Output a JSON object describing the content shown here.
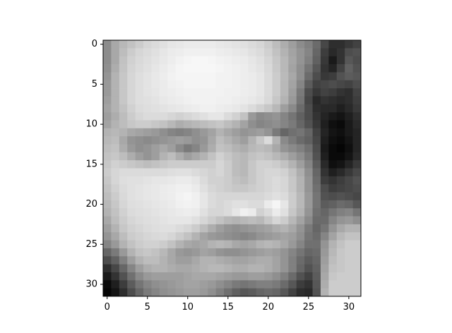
{
  "chart_data": {
    "type": "heatmap",
    "colormap": "gray",
    "grid": false,
    "xlim": [
      -0.5,
      31.5
    ],
    "ylim": [
      31.5,
      -0.5
    ],
    "x_ticks": [
      0,
      5,
      10,
      15,
      20,
      25,
      30
    ],
    "y_ticks": [
      0,
      5,
      10,
      15,
      20,
      25,
      30
    ],
    "x_tick_labels": [
      "0",
      "5",
      "10",
      "15",
      "20",
      "25",
      "30"
    ],
    "y_tick_labels": [
      "0",
      "5",
      "10",
      "15",
      "20",
      "25",
      "30"
    ],
    "shape": [
      32,
      32
    ],
    "values": [
      [
        0.55,
        0.66,
        0.72,
        0.76,
        0.8,
        0.84,
        0.86,
        0.88,
        0.9,
        0.91,
        0.92,
        0.92,
        0.92,
        0.92,
        0.91,
        0.9,
        0.89,
        0.88,
        0.86,
        0.84,
        0.8,
        0.74,
        0.68,
        0.62,
        0.55,
        0.5,
        0.42,
        0.28,
        0.18,
        0.18,
        0.22,
        0.26
      ],
      [
        0.55,
        0.66,
        0.74,
        0.8,
        0.84,
        0.86,
        0.88,
        0.9,
        0.92,
        0.93,
        0.94,
        0.94,
        0.94,
        0.94,
        0.93,
        0.92,
        0.91,
        0.9,
        0.88,
        0.86,
        0.82,
        0.76,
        0.7,
        0.64,
        0.58,
        0.52,
        0.4,
        0.24,
        0.16,
        0.2,
        0.3,
        0.32
      ],
      [
        0.55,
        0.66,
        0.76,
        0.82,
        0.85,
        0.87,
        0.89,
        0.91,
        0.93,
        0.95,
        0.96,
        0.97,
        0.97,
        0.96,
        0.95,
        0.94,
        0.93,
        0.92,
        0.9,
        0.88,
        0.84,
        0.78,
        0.72,
        0.65,
        0.58,
        0.5,
        0.38,
        0.22,
        0.1,
        0.2,
        0.34,
        0.3
      ],
      [
        0.56,
        0.68,
        0.77,
        0.83,
        0.86,
        0.88,
        0.9,
        0.92,
        0.94,
        0.96,
        0.97,
        0.97,
        0.97,
        0.97,
        0.96,
        0.95,
        0.94,
        0.93,
        0.91,
        0.89,
        0.85,
        0.79,
        0.72,
        0.64,
        0.56,
        0.46,
        0.34,
        0.2,
        0.14,
        0.26,
        0.38,
        0.32
      ],
      [
        0.58,
        0.7,
        0.78,
        0.84,
        0.87,
        0.89,
        0.91,
        0.93,
        0.95,
        0.96,
        0.96,
        0.96,
        0.96,
        0.96,
        0.95,
        0.95,
        0.94,
        0.93,
        0.92,
        0.9,
        0.86,
        0.8,
        0.73,
        0.66,
        0.56,
        0.42,
        0.3,
        0.22,
        0.24,
        0.32,
        0.36,
        0.34
      ],
      [
        0.6,
        0.7,
        0.78,
        0.84,
        0.87,
        0.89,
        0.91,
        0.92,
        0.94,
        0.95,
        0.96,
        0.96,
        0.96,
        0.96,
        0.95,
        0.95,
        0.94,
        0.93,
        0.92,
        0.9,
        0.86,
        0.8,
        0.72,
        0.64,
        0.52,
        0.36,
        0.26,
        0.28,
        0.3,
        0.28,
        0.26,
        0.3
      ],
      [
        0.6,
        0.7,
        0.78,
        0.84,
        0.87,
        0.89,
        0.9,
        0.92,
        0.93,
        0.94,
        0.95,
        0.95,
        0.95,
        0.95,
        0.95,
        0.94,
        0.94,
        0.93,
        0.92,
        0.9,
        0.86,
        0.8,
        0.72,
        0.62,
        0.48,
        0.3,
        0.22,
        0.26,
        0.24,
        0.2,
        0.18,
        0.26
      ],
      [
        0.62,
        0.7,
        0.78,
        0.84,
        0.87,
        0.88,
        0.89,
        0.91,
        0.92,
        0.93,
        0.94,
        0.95,
        0.95,
        0.95,
        0.94,
        0.94,
        0.93,
        0.92,
        0.91,
        0.89,
        0.85,
        0.78,
        0.7,
        0.6,
        0.46,
        0.28,
        0.16,
        0.2,
        0.18,
        0.16,
        0.18,
        0.24
      ],
      [
        0.64,
        0.7,
        0.76,
        0.82,
        0.86,
        0.87,
        0.88,
        0.89,
        0.9,
        0.91,
        0.92,
        0.93,
        0.94,
        0.94,
        0.93,
        0.92,
        0.91,
        0.89,
        0.86,
        0.82,
        0.78,
        0.72,
        0.62,
        0.54,
        0.42,
        0.3,
        0.18,
        0.16,
        0.16,
        0.12,
        0.16,
        0.22
      ],
      [
        0.62,
        0.68,
        0.74,
        0.8,
        0.84,
        0.86,
        0.86,
        0.86,
        0.84,
        0.82,
        0.84,
        0.86,
        0.88,
        0.9,
        0.9,
        0.86,
        0.82,
        0.76,
        0.6,
        0.54,
        0.56,
        0.58,
        0.52,
        0.46,
        0.38,
        0.3,
        0.2,
        0.14,
        0.1,
        0.08,
        0.12,
        0.18
      ],
      [
        0.64,
        0.7,
        0.74,
        0.78,
        0.8,
        0.8,
        0.78,
        0.76,
        0.72,
        0.68,
        0.7,
        0.72,
        0.74,
        0.76,
        0.78,
        0.74,
        0.7,
        0.64,
        0.56,
        0.52,
        0.54,
        0.56,
        0.52,
        0.48,
        0.4,
        0.32,
        0.22,
        0.12,
        0.06,
        0.04,
        0.1,
        0.16
      ],
      [
        0.7,
        0.72,
        0.7,
        0.66,
        0.64,
        0.62,
        0.6,
        0.56,
        0.52,
        0.5,
        0.52,
        0.56,
        0.6,
        0.64,
        0.7,
        0.66,
        0.62,
        0.58,
        0.6,
        0.62,
        0.58,
        0.48,
        0.4,
        0.44,
        0.46,
        0.4,
        0.26,
        0.14,
        0.08,
        0.06,
        0.1,
        0.14
      ],
      [
        0.72,
        0.74,
        0.66,
        0.58,
        0.56,
        0.54,
        0.56,
        0.58,
        0.6,
        0.62,
        0.6,
        0.56,
        0.58,
        0.66,
        0.74,
        0.7,
        0.66,
        0.62,
        0.7,
        0.78,
        0.86,
        0.7,
        0.54,
        0.48,
        0.42,
        0.38,
        0.28,
        0.12,
        0.06,
        0.04,
        0.08,
        0.14
      ],
      [
        0.74,
        0.76,
        0.68,
        0.6,
        0.56,
        0.58,
        0.62,
        0.66,
        0.62,
        0.54,
        0.48,
        0.52,
        0.6,
        0.68,
        0.76,
        0.74,
        0.7,
        0.68,
        0.72,
        0.74,
        0.72,
        0.66,
        0.58,
        0.54,
        0.5,
        0.44,
        0.3,
        0.1,
        0.04,
        0.02,
        0.06,
        0.14
      ],
      [
        0.76,
        0.78,
        0.74,
        0.68,
        0.62,
        0.58,
        0.62,
        0.7,
        0.74,
        0.68,
        0.62,
        0.66,
        0.7,
        0.76,
        0.82,
        0.78,
        0.74,
        0.72,
        0.76,
        0.78,
        0.76,
        0.72,
        0.68,
        0.62,
        0.56,
        0.48,
        0.32,
        0.12,
        0.04,
        0.04,
        0.08,
        0.16
      ],
      [
        0.78,
        0.82,
        0.8,
        0.78,
        0.76,
        0.74,
        0.76,
        0.78,
        0.8,
        0.8,
        0.8,
        0.8,
        0.8,
        0.8,
        0.84,
        0.8,
        0.74,
        0.72,
        0.78,
        0.82,
        0.82,
        0.8,
        0.76,
        0.7,
        0.62,
        0.52,
        0.36,
        0.16,
        0.06,
        0.08,
        0.14,
        0.22
      ],
      [
        0.8,
        0.84,
        0.86,
        0.86,
        0.86,
        0.86,
        0.86,
        0.86,
        0.87,
        0.88,
        0.88,
        0.86,
        0.84,
        0.82,
        0.84,
        0.8,
        0.74,
        0.72,
        0.78,
        0.82,
        0.84,
        0.84,
        0.82,
        0.76,
        0.68,
        0.56,
        0.4,
        0.2,
        0.12,
        0.16,
        0.22,
        0.28
      ],
      [
        0.78,
        0.84,
        0.87,
        0.88,
        0.88,
        0.89,
        0.9,
        0.9,
        0.91,
        0.92,
        0.92,
        0.9,
        0.86,
        0.82,
        0.82,
        0.8,
        0.76,
        0.74,
        0.78,
        0.82,
        0.84,
        0.86,
        0.84,
        0.78,
        0.7,
        0.58,
        0.42,
        0.24,
        0.2,
        0.24,
        0.28,
        0.32
      ],
      [
        0.76,
        0.82,
        0.86,
        0.88,
        0.89,
        0.9,
        0.91,
        0.92,
        0.93,
        0.94,
        0.94,
        0.92,
        0.88,
        0.84,
        0.82,
        0.8,
        0.78,
        0.78,
        0.8,
        0.82,
        0.84,
        0.86,
        0.84,
        0.78,
        0.7,
        0.58,
        0.44,
        0.3,
        0.24,
        0.26,
        0.28,
        0.3
      ],
      [
        0.74,
        0.8,
        0.85,
        0.88,
        0.89,
        0.9,
        0.91,
        0.92,
        0.93,
        0.95,
        0.96,
        0.94,
        0.9,
        0.86,
        0.84,
        0.84,
        0.84,
        0.84,
        0.84,
        0.84,
        0.86,
        0.88,
        0.86,
        0.8,
        0.72,
        0.6,
        0.46,
        0.32,
        0.3,
        0.32,
        0.3,
        0.28
      ],
      [
        0.72,
        0.78,
        0.84,
        0.87,
        0.88,
        0.89,
        0.9,
        0.91,
        0.92,
        0.94,
        0.95,
        0.94,
        0.9,
        0.86,
        0.84,
        0.86,
        0.88,
        0.88,
        0.86,
        0.86,
        0.92,
        0.96,
        0.9,
        0.8,
        0.72,
        0.6,
        0.46,
        0.36,
        0.38,
        0.42,
        0.4,
        0.34
      ],
      [
        0.7,
        0.76,
        0.82,
        0.86,
        0.87,
        0.88,
        0.89,
        0.9,
        0.91,
        0.92,
        0.93,
        0.92,
        0.88,
        0.84,
        0.84,
        0.86,
        0.9,
        0.94,
        0.92,
        0.82,
        0.86,
        0.92,
        0.88,
        0.78,
        0.7,
        0.58,
        0.44,
        0.4,
        0.46,
        0.5,
        0.52,
        0.46
      ],
      [
        0.66,
        0.74,
        0.8,
        0.84,
        0.86,
        0.87,
        0.88,
        0.89,
        0.9,
        0.9,
        0.9,
        0.88,
        0.84,
        0.8,
        0.76,
        0.72,
        0.7,
        0.72,
        0.74,
        0.72,
        0.78,
        0.84,
        0.8,
        0.72,
        0.64,
        0.54,
        0.42,
        0.42,
        0.52,
        0.58,
        0.6,
        0.56
      ],
      [
        0.62,
        0.7,
        0.78,
        0.82,
        0.84,
        0.86,
        0.87,
        0.88,
        0.88,
        0.86,
        0.84,
        0.8,
        0.74,
        0.68,
        0.62,
        0.58,
        0.56,
        0.58,
        0.6,
        0.62,
        0.64,
        0.68,
        0.7,
        0.66,
        0.58,
        0.48,
        0.4,
        0.46,
        0.58,
        0.66,
        0.7,
        0.7
      ],
      [
        0.58,
        0.66,
        0.74,
        0.8,
        0.82,
        0.84,
        0.85,
        0.86,
        0.84,
        0.8,
        0.76,
        0.7,
        0.64,
        0.6,
        0.58,
        0.56,
        0.54,
        0.52,
        0.54,
        0.58,
        0.6,
        0.62,
        0.64,
        0.62,
        0.56,
        0.46,
        0.42,
        0.52,
        0.64,
        0.72,
        0.76,
        0.76
      ],
      [
        0.52,
        0.6,
        0.7,
        0.76,
        0.8,
        0.82,
        0.82,
        0.8,
        0.76,
        0.7,
        0.66,
        0.64,
        0.66,
        0.7,
        0.72,
        0.7,
        0.66,
        0.64,
        0.66,
        0.7,
        0.72,
        0.7,
        0.66,
        0.6,
        0.52,
        0.44,
        0.44,
        0.58,
        0.7,
        0.76,
        0.8,
        0.8
      ],
      [
        0.4,
        0.48,
        0.6,
        0.7,
        0.76,
        0.78,
        0.76,
        0.72,
        0.66,
        0.6,
        0.58,
        0.6,
        0.64,
        0.62,
        0.58,
        0.56,
        0.56,
        0.58,
        0.6,
        0.62,
        0.64,
        0.62,
        0.58,
        0.52,
        0.46,
        0.4,
        0.42,
        0.6,
        0.72,
        0.78,
        0.8,
        0.8
      ],
      [
        0.3,
        0.38,
        0.5,
        0.62,
        0.7,
        0.74,
        0.74,
        0.7,
        0.66,
        0.62,
        0.62,
        0.66,
        0.7,
        0.7,
        0.68,
        0.66,
        0.64,
        0.64,
        0.66,
        0.68,
        0.68,
        0.64,
        0.58,
        0.5,
        0.42,
        0.36,
        0.4,
        0.62,
        0.74,
        0.78,
        0.8,
        0.8
      ],
      [
        0.18,
        0.28,
        0.4,
        0.52,
        0.62,
        0.68,
        0.7,
        0.7,
        0.68,
        0.66,
        0.66,
        0.68,
        0.7,
        0.72,
        0.72,
        0.7,
        0.68,
        0.68,
        0.7,
        0.7,
        0.68,
        0.64,
        0.58,
        0.5,
        0.4,
        0.32,
        0.38,
        0.64,
        0.76,
        0.78,
        0.8,
        0.8
      ],
      [
        0.1,
        0.2,
        0.32,
        0.44,
        0.54,
        0.6,
        0.62,
        0.62,
        0.62,
        0.62,
        0.64,
        0.66,
        0.66,
        0.66,
        0.64,
        0.62,
        0.6,
        0.6,
        0.62,
        0.62,
        0.6,
        0.56,
        0.5,
        0.42,
        0.32,
        0.26,
        0.36,
        0.66,
        0.78,
        0.8,
        0.8,
        0.8
      ],
      [
        0.04,
        0.12,
        0.24,
        0.36,
        0.46,
        0.52,
        0.56,
        0.58,
        0.6,
        0.62,
        0.64,
        0.64,
        0.62,
        0.6,
        0.56,
        0.52,
        0.48,
        0.46,
        0.48,
        0.5,
        0.5,
        0.48,
        0.42,
        0.34,
        0.24,
        0.2,
        0.34,
        0.68,
        0.8,
        0.8,
        0.8,
        0.8
      ],
      [
        0.02,
        0.08,
        0.18,
        0.3,
        0.4,
        0.48,
        0.52,
        0.56,
        0.58,
        0.6,
        0.62,
        0.62,
        0.6,
        0.56,
        0.5,
        0.44,
        0.38,
        0.34,
        0.36,
        0.4,
        0.42,
        0.4,
        0.34,
        0.26,
        0.18,
        0.16,
        0.32,
        0.7,
        0.8,
        0.8,
        0.8,
        0.8
      ]
    ]
  }
}
